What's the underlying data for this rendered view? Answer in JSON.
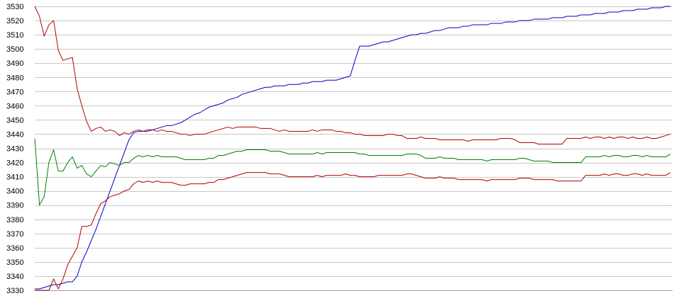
{
  "chart_data": {
    "type": "line",
    "title": "",
    "xlabel": "",
    "ylabel": "",
    "ylim": [
      3330,
      3530
    ],
    "yticks": [
      3330,
      3340,
      3350,
      3360,
      3370,
      3380,
      3390,
      3400,
      3410,
      3420,
      3430,
      3440,
      3450,
      3460,
      3470,
      3480,
      3490,
      3500,
      3510,
      3520,
      3530
    ],
    "grid": "horizontal",
    "legend": "none",
    "point_count": 136,
    "series": [
      {
        "color": "#0000c0",
        "values": [
          3331,
          3331,
          3332,
          3333,
          3334,
          3334,
          3335,
          3336,
          3336,
          3340,
          3350,
          3357,
          3365,
          3373,
          3382,
          3391,
          3400,
          3409,
          3418,
          3427,
          3436,
          3441,
          3442,
          3442,
          3443,
          3443,
          3444,
          3445,
          3446,
          3446,
          3447,
          3448,
          3450,
          3452,
          3454,
          3455,
          3457,
          3459,
          3460,
          3461,
          3462,
          3464,
          3465,
          3466,
          3468,
          3469,
          3470,
          3471,
          3472,
          3473,
          3473,
          3474,
          3474,
          3474,
          3475,
          3475,
          3475,
          3476,
          3476,
          3477,
          3477,
          3477,
          3478,
          3478,
          3478,
          3479,
          3480,
          3481,
          3492,
          3502,
          3502,
          3502,
          3503,
          3504,
          3505,
          3505,
          3506,
          3507,
          3508,
          3509,
          3510,
          3510,
          3511,
          3511,
          3512,
          3513,
          3513,
          3514,
          3515,
          3515,
          3515,
          3516,
          3516,
          3517,
          3517,
          3517,
          3517,
          3518,
          3518,
          3518,
          3519,
          3519,
          3519,
          3520,
          3520,
          3520,
          3521,
          3521,
          3521,
          3521,
          3522,
          3522,
          3522,
          3523,
          3523,
          3523,
          3524,
          3524,
          3524,
          3525,
          3525,
          3525,
          3526,
          3526,
          3526,
          3527,
          3527,
          3527,
          3528,
          3528,
          3528,
          3529,
          3529,
          3529,
          3530,
          3530
        ]
      },
      {
        "color": "#b00000",
        "values": [
          3530,
          3523,
          3509,
          3517,
          3520,
          3499,
          3492,
          3493,
          3494,
          3472,
          3460,
          3449,
          3442,
          3444,
          3445,
          3442,
          3443,
          3442,
          3439,
          3441,
          3440,
          3442,
          3443,
          3442,
          3442,
          3443,
          3442,
          3443,
          3442,
          3442,
          3441,
          3440,
          3440,
          3439,
          3440,
          3440,
          3440,
          3441,
          3442,
          3443,
          3444,
          3445,
          3444,
          3445,
          3445,
          3445,
          3445,
          3445,
          3444,
          3444,
          3444,
          3443,
          3442,
          3443,
          3442,
          3442,
          3442,
          3442,
          3442,
          3443,
          3442,
          3443,
          3443,
          3443,
          3442,
          3442,
          3441,
          3441,
          3440,
          3440,
          3439,
          3439,
          3439,
          3439,
          3439,
          3440,
          3440,
          3439,
          3439,
          3437,
          3437,
          3437,
          3438,
          3437,
          3437,
          3437,
          3436,
          3436,
          3436,
          3436,
          3436,
          3436,
          3435,
          3436,
          3436,
          3436,
          3436,
          3436,
          3436,
          3437,
          3437,
          3437,
          3436,
          3434,
          3434,
          3434,
          3434,
          3433,
          3433,
          3433,
          3433,
          3433,
          3433,
          3437,
          3437,
          3437,
          3437,
          3438,
          3437,
          3438,
          3438,
          3437,
          3438,
          3437,
          3438,
          3438,
          3437,
          3438,
          3437,
          3437,
          3438,
          3437,
          3437,
          3438,
          3439,
          3440
        ]
      },
      {
        "color": "#008000",
        "values": [
          3437,
          3390,
          3396,
          3420,
          3429,
          3414,
          3414,
          3420,
          3424,
          3416,
          3418,
          3412,
          3410,
          3414,
          3418,
          3417,
          3420,
          3419,
          3418,
          3420,
          3420,
          3423,
          3425,
          3424,
          3425,
          3424,
          3425,
          3424,
          3424,
          3424,
          3424,
          3423,
          3422,
          3422,
          3422,
          3422,
          3422,
          3423,
          3423,
          3425,
          3425,
          3426,
          3427,
          3428,
          3428,
          3429,
          3429,
          3429,
          3429,
          3429,
          3428,
          3428,
          3428,
          3427,
          3426,
          3426,
          3426,
          3426,
          3426,
          3426,
          3427,
          3426,
          3427,
          3427,
          3427,
          3427,
          3427,
          3427,
          3427,
          3426,
          3426,
          3425,
          3425,
          3425,
          3425,
          3425,
          3425,
          3425,
          3425,
          3426,
          3426,
          3426,
          3425,
          3423,
          3423,
          3423,
          3424,
          3423,
          3423,
          3423,
          3422,
          3422,
          3422,
          3422,
          3422,
          3422,
          3421,
          3422,
          3422,
          3422,
          3422,
          3422,
          3422,
          3423,
          3423,
          3422,
          3421,
          3421,
          3421,
          3421,
          3420,
          3420,
          3420,
          3420,
          3420,
          3420,
          3420,
          3424,
          3424,
          3424,
          3424,
          3425,
          3424,
          3425,
          3425,
          3424,
          3424,
          3425,
          3425,
          3424,
          3425,
          3424,
          3424,
          3424,
          3424,
          3426
        ]
      },
      {
        "color": "#b00000",
        "values": [
          3330,
          3330,
          3330,
          3330,
          3338,
          3331,
          3338,
          3348,
          3354,
          3360,
          3375,
          3375,
          3376,
          3384,
          3391,
          3393,
          3396,
          3397,
          3398,
          3400,
          3401,
          3405,
          3407,
          3406,
          3407,
          3406,
          3407,
          3406,
          3406,
          3406,
          3405,
          3404,
          3404,
          3405,
          3405,
          3405,
          3405,
          3406,
          3406,
          3408,
          3408,
          3409,
          3410,
          3411,
          3412,
          3413,
          3413,
          3413,
          3413,
          3413,
          3412,
          3412,
          3412,
          3411,
          3410,
          3410,
          3410,
          3410,
          3410,
          3410,
          3411,
          3410,
          3411,
          3411,
          3411,
          3411,
          3412,
          3411,
          3411,
          3410,
          3410,
          3410,
          3410,
          3411,
          3411,
          3411,
          3411,
          3411,
          3411,
          3412,
          3412,
          3411,
          3410,
          3409,
          3409,
          3409,
          3410,
          3409,
          3409,
          3409,
          3408,
          3408,
          3408,
          3408,
          3408,
          3408,
          3407,
          3408,
          3408,
          3408,
          3408,
          3408,
          3408,
          3409,
          3409,
          3409,
          3408,
          3408,
          3408,
          3408,
          3408,
          3407,
          3407,
          3407,
          3407,
          3407,
          3407,
          3411,
          3411,
          3411,
          3411,
          3412,
          3411,
          3412,
          3412,
          3411,
          3411,
          3412,
          3412,
          3411,
          3412,
          3411,
          3411,
          3411,
          3411,
          3413
        ]
      }
    ]
  }
}
